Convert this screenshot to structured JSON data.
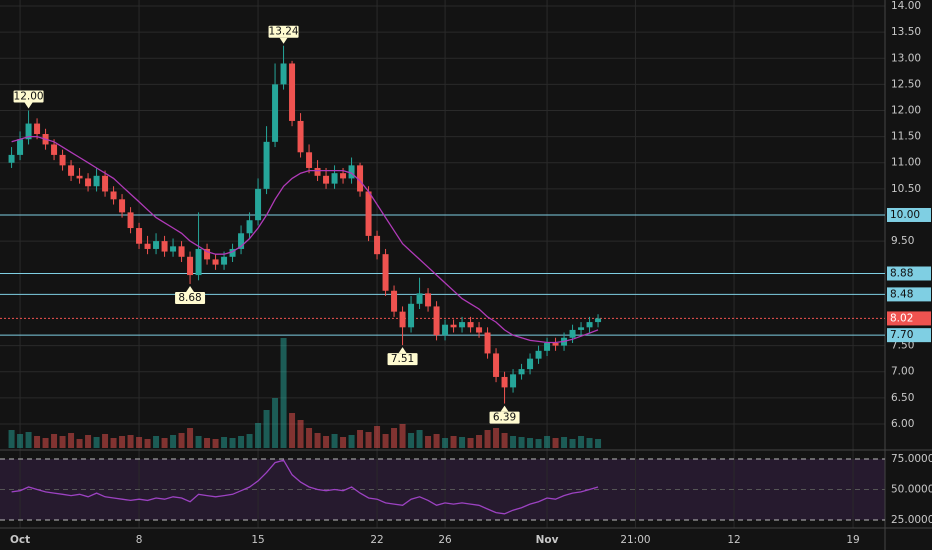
{
  "chart_data": {
    "type": "candlestick",
    "x": [
      0.5,
      1,
      1.5,
      2,
      2.5,
      3,
      3.5,
      4,
      4.5,
      5,
      5.5,
      6,
      6.5,
      7,
      7.5,
      8,
      8.5,
      9,
      9.5,
      10,
      10.5,
      11,
      11.5,
      12,
      12.5,
      13,
      13.5,
      14,
      14.5,
      15,
      15.5,
      16,
      16.5,
      17,
      17.5,
      18,
      18.5,
      19,
      19.5,
      20,
      20.5,
      21,
      21.5,
      22,
      22.5,
      23,
      23.5,
      24,
      24.5,
      25,
      25.5,
      26,
      26.5,
      27,
      27.5,
      28,
      28.5,
      29,
      29.5,
      30,
      30.5,
      31,
      31.5,
      32,
      32.5,
      33,
      33.5,
      34,
      34.5,
      35
    ],
    "open": [
      11.0,
      11.15,
      11.45,
      11.75,
      11.55,
      11.35,
      11.15,
      10.95,
      10.75,
      10.7,
      10.55,
      10.75,
      10.45,
      10.3,
      10.05,
      9.75,
      9.45,
      9.35,
      9.5,
      9.3,
      9.4,
      9.2,
      8.85,
      9.35,
      9.15,
      9.05,
      9.2,
      9.35,
      9.65,
      9.9,
      10.5,
      11.4,
      12.5,
      12.9,
      11.8,
      11.2,
      10.9,
      10.75,
      10.6,
      10.8,
      10.7,
      10.95,
      10.45,
      9.6,
      9.25,
      8.55,
      8.15,
      7.85,
      8.3,
      8.5,
      8.25,
      7.7,
      7.9,
      7.85,
      7.95,
      7.85,
      7.75,
      7.35,
      6.9,
      6.7,
      6.95,
      7.05,
      7.25,
      7.4,
      7.55,
      7.5,
      7.65,
      7.8,
      7.85,
      7.95
    ],
    "high": [
      11.3,
      11.6,
      12.0,
      11.85,
      11.65,
      11.45,
      11.25,
      11.05,
      10.9,
      10.8,
      10.9,
      10.85,
      10.55,
      10.4,
      10.15,
      9.85,
      9.6,
      9.65,
      9.6,
      9.55,
      9.5,
      9.3,
      10.05,
      9.45,
      9.25,
      9.3,
      9.45,
      9.8,
      10.05,
      10.7,
      11.7,
      12.9,
      13.24,
      12.95,
      11.95,
      11.35,
      11.05,
      10.9,
      10.95,
      10.9,
      11.1,
      11.0,
      10.55,
      9.7,
      9.35,
      8.65,
      8.25,
      8.45,
      8.8,
      8.6,
      8.35,
      8.0,
      8.0,
      8.05,
      8.05,
      7.95,
      7.85,
      7.45,
      7.0,
      7.05,
      7.15,
      7.35,
      7.5,
      7.65,
      7.65,
      7.75,
      7.9,
      7.95,
      8.05,
      8.1
    ],
    "low": [
      10.9,
      11.05,
      11.35,
      11.45,
      11.25,
      11.05,
      10.85,
      10.65,
      10.6,
      10.45,
      10.45,
      10.35,
      10.2,
      9.95,
      9.65,
      9.35,
      9.25,
      9.25,
      9.2,
      9.2,
      9.1,
      8.68,
      8.75,
      9.05,
      8.95,
      8.95,
      9.1,
      9.25,
      9.55,
      9.8,
      10.4,
      11.3,
      12.4,
      11.7,
      11.1,
      10.8,
      10.65,
      10.5,
      10.5,
      10.6,
      10.6,
      10.35,
      9.5,
      9.15,
      8.45,
      8.05,
      7.51,
      7.75,
      8.2,
      8.15,
      7.6,
      7.6,
      7.75,
      7.75,
      7.75,
      7.65,
      7.25,
      6.8,
      6.39,
      6.6,
      6.85,
      6.95,
      7.15,
      7.3,
      7.4,
      7.4,
      7.55,
      7.7,
      7.75,
      7.85
    ],
    "close": [
      11.15,
      11.45,
      11.75,
      11.55,
      11.35,
      11.15,
      10.95,
      10.75,
      10.7,
      10.55,
      10.75,
      10.45,
      10.3,
      10.05,
      9.75,
      9.45,
      9.35,
      9.5,
      9.3,
      9.4,
      9.2,
      8.85,
      9.35,
      9.15,
      9.05,
      9.2,
      9.35,
      9.65,
      9.9,
      10.5,
      11.4,
      12.5,
      12.9,
      11.8,
      11.2,
      10.9,
      10.75,
      10.6,
      10.8,
      10.7,
      10.95,
      10.45,
      9.6,
      9.25,
      8.55,
      8.15,
      7.85,
      8.3,
      8.5,
      8.25,
      7.7,
      7.9,
      7.85,
      7.95,
      7.85,
      7.75,
      7.35,
      6.9,
      6.7,
      6.95,
      7.05,
      7.25,
      7.4,
      7.55,
      7.5,
      7.65,
      7.8,
      7.85,
      7.95,
      8.02
    ],
    "volume": [
      18,
      14,
      16,
      12,
      10,
      14,
      12,
      15,
      9,
      13,
      11,
      14,
      10,
      12,
      13,
      11,
      9,
      12,
      10,
      13,
      15,
      20,
      12,
      10,
      9,
      11,
      10,
      12,
      14,
      25,
      38,
      50,
      110,
      35,
      28,
      20,
      15,
      12,
      14,
      11,
      13,
      18,
      16,
      22,
      14,
      20,
      24,
      15,
      18,
      12,
      14,
      10,
      12,
      11,
      10,
      13,
      18,
      20,
      15,
      12,
      11,
      10,
      9,
      12,
      10,
      11,
      9,
      12,
      10,
      9
    ],
    "vlim": [
      0,
      120
    ],
    "up_color": "#26a69a",
    "down_color": "#ef5350",
    "ma": {
      "color": "#b03ab8",
      "values": [
        11.4,
        11.45,
        11.5,
        11.5,
        11.45,
        11.4,
        11.3,
        11.2,
        11.1,
        11.0,
        10.9,
        10.8,
        10.7,
        10.55,
        10.4,
        10.25,
        10.1,
        9.95,
        9.85,
        9.75,
        9.65,
        9.5,
        9.4,
        9.3,
        9.25,
        9.25,
        9.3,
        9.4,
        9.55,
        9.75,
        10.0,
        10.3,
        10.55,
        10.7,
        10.8,
        10.85,
        10.85,
        10.85,
        10.85,
        10.85,
        10.8,
        10.65,
        10.45,
        10.2,
        9.95,
        9.7,
        9.45,
        9.3,
        9.15,
        9.0,
        8.85,
        8.7,
        8.55,
        8.4,
        8.3,
        8.2,
        8.05,
        7.95,
        7.8,
        7.7,
        7.65,
        7.6,
        7.58,
        7.56,
        7.56,
        7.58,
        7.62,
        7.68,
        7.74,
        7.8
      ]
    },
    "rsi": {
      "color": "#9c42c2",
      "values": [
        48,
        49,
        52,
        50,
        48,
        47,
        46,
        45,
        46,
        44,
        47,
        44,
        43,
        42,
        41,
        42,
        41,
        43,
        42,
        44,
        43,
        40,
        46,
        45,
        44,
        45,
        46,
        49,
        52,
        57,
        64,
        72,
        74,
        62,
        56,
        52,
        50,
        49,
        50,
        49,
        52,
        47,
        43,
        42,
        39,
        38,
        37,
        42,
        44,
        41,
        37,
        39,
        38,
        39,
        38,
        37,
        34,
        31,
        30,
        33,
        35,
        38,
        40,
        43,
        42,
        45,
        47,
        48,
        50,
        52
      ],
      "ylim": [
        18.4,
        80.7
      ],
      "yticks": [
        {
          "value": 75,
          "label": "75.0000"
        },
        {
          "value": 50,
          "label": "50.0000"
        },
        {
          "value": 25,
          "label": "25.0000"
        }
      ],
      "band": [
        25,
        75
      ]
    },
    "xlim": [
      -0.18,
      51.88
    ],
    "xticks": [
      {
        "value": 1,
        "label": "Oct"
      },
      8,
      15,
      22,
      26,
      {
        "value": 32,
        "label": "Nov"
      },
      {
        "value": 37.2,
        "label": "21:00"
      },
      {
        "value": 43,
        "label": "12"
      },
      {
        "value": 50,
        "label": "19"
      }
    ],
    "ylim": [
      5.54,
      14.115
    ],
    "yticks": [
      {
        "value": 14,
        "label": "14.00"
      },
      {
        "value": 13.5,
        "label": "13.50"
      },
      {
        "value": 13,
        "label": "13.00"
      },
      {
        "value": 12.5,
        "label": "12.50"
      },
      {
        "value": 12,
        "label": "12.00"
      },
      {
        "value": 11.5,
        "label": "11.50"
      },
      {
        "value": 11,
        "label": "11.00"
      },
      {
        "value": 10.5,
        "label": "10.50"
      },
      {
        "value": 9.5,
        "label": "9.50"
      },
      {
        "value": 7.5,
        "label": "7.50"
      },
      {
        "value": 7,
        "label": "7.00"
      },
      {
        "value": 6.5,
        "label": "6.50"
      },
      {
        "value": 6,
        "label": "6.00"
      }
    ],
    "grid": true,
    "levels": {
      "color": "#7fcfe3",
      "items": [
        {
          "value": 10,
          "label": "10.00"
        },
        {
          "value": 8.88,
          "label": "8.88"
        },
        {
          "value": 8.48,
          "label": "8.48"
        },
        {
          "value": 7.7,
          "label": "7.70"
        }
      ]
    },
    "current": {
      "value": 8.02,
      "label": "8.02",
      "color": "#ef5350"
    },
    "annotations": [
      {
        "value": 12.0,
        "label": "12.00",
        "day": 1.5,
        "position": "above"
      },
      {
        "value": 8.68,
        "label": "8.68",
        "day": 11,
        "position": "below"
      },
      {
        "value": 13.24,
        "label": "13.24",
        "day": 16.5,
        "position": "above"
      },
      {
        "value": 7.51,
        "label": "7.51",
        "day": 23.5,
        "position": "below"
      },
      {
        "value": 6.39,
        "label": "6.39",
        "day": 29.5,
        "position": "below"
      }
    ]
  }
}
